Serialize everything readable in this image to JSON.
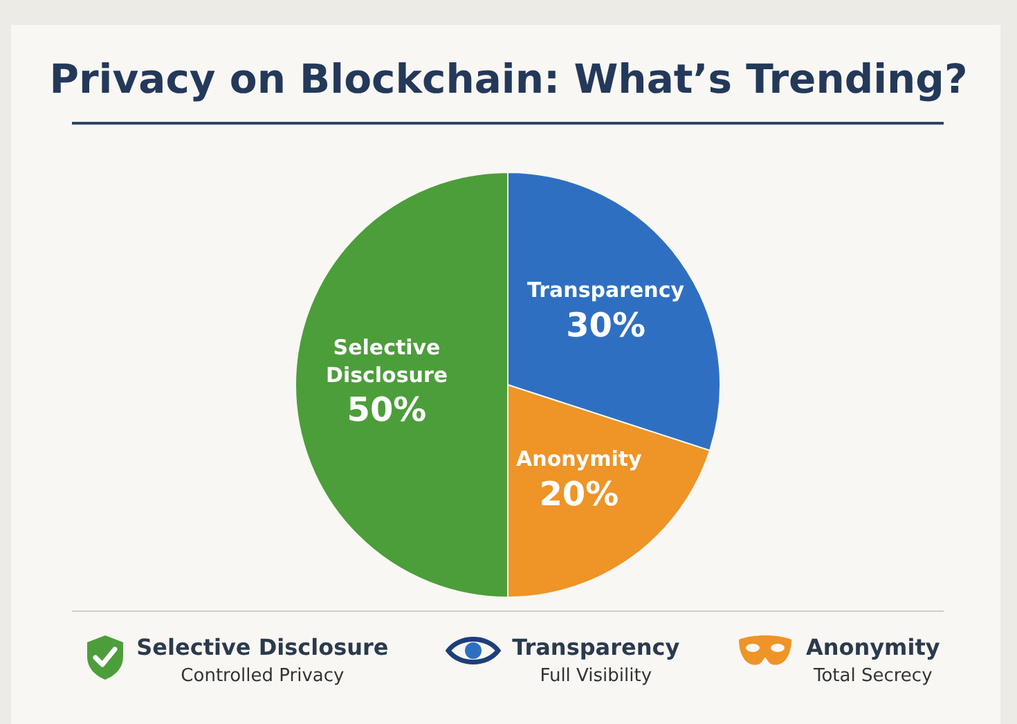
{
  "chart_data": {
    "type": "pie",
    "title": "Privacy on Blockchain: What’s Trending?",
    "categories": [
      "Selective Disclosure",
      "Transparency",
      "Anonymity"
    ],
    "values": [
      50,
      30,
      20
    ],
    "colors": [
      "#4c9e3a",
      "#2f6fc2",
      "#ef9426"
    ],
    "value_labels": [
      "50%",
      "30%",
      "20%"
    ],
    "legend": "bottom",
    "annotations": [
      "Controlled Privacy",
      "Full Visibility",
      "Total Secrecy"
    ]
  }
}
